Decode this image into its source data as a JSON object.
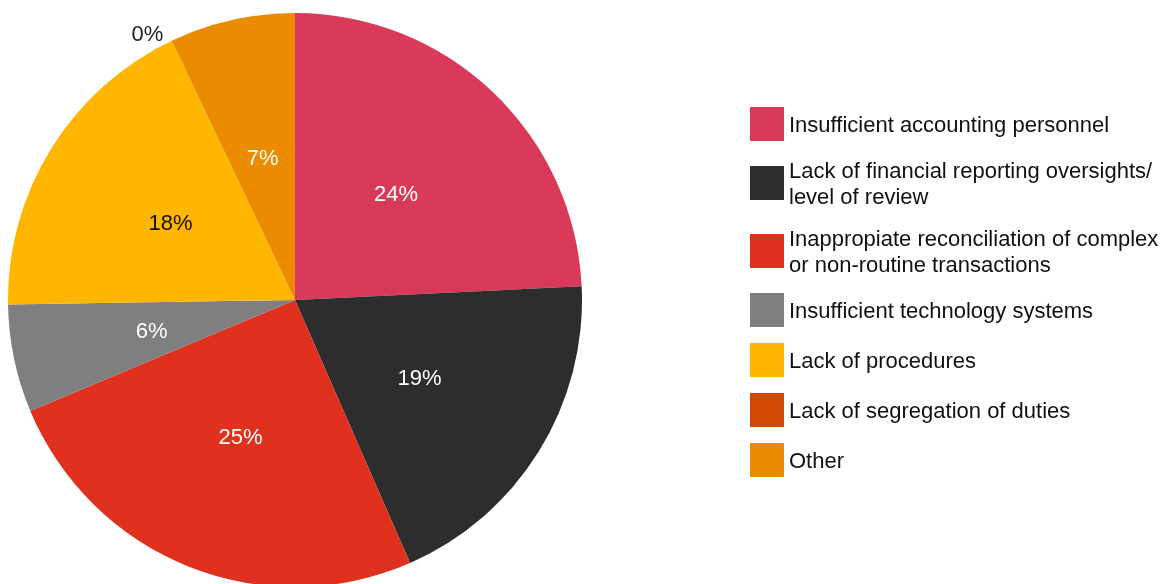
{
  "chart_data": {
    "type": "pie",
    "categories": [
      "Insufficient accounting personnel",
      "Lack of financial reporting oversights/level of review",
      "Inappropiate reconciliation of complex or non-routine transactions",
      "Insufficient technology systems",
      "Lack of procedures",
      "Lack of segregation of duties",
      "Other"
    ],
    "values": [
      24,
      19,
      25,
      6,
      18,
      0,
      7
    ],
    "value_labels": [
      "24%",
      "19%",
      "25%",
      "6%",
      "18%",
      "0%",
      "7%"
    ],
    "colors": [
      "#d93a5a",
      "#2d2d2d",
      "#e0301e",
      "#7f7f7f",
      "#ffb600",
      "#d04a02",
      "#eb8c00"
    ],
    "legend": "right"
  }
}
